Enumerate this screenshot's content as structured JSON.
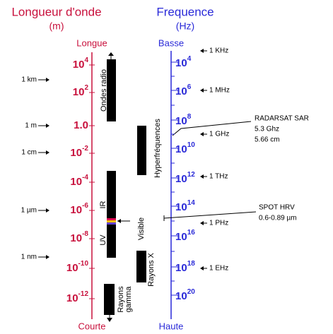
{
  "left_axis": {
    "title": "Longueur d'onde",
    "unit": "(m)",
    "top": "Longue",
    "bottom": "Courte",
    "ticks": [
      {
        "base": "10",
        "exp": "4"
      },
      {
        "base": "10",
        "exp": "2"
      },
      {
        "base": "1.0"
      },
      {
        "base": "10",
        "exp": "-2"
      },
      {
        "base": "10",
        "exp": "-4"
      },
      {
        "base": "10",
        "exp": "-6"
      },
      {
        "base": "10",
        "exp": "-8"
      },
      {
        "base": "10",
        "exp": "-10"
      },
      {
        "base": "10",
        "exp": "-12"
      }
    ],
    "markers": [
      "1 km",
      "1 m",
      "1 cm",
      "1 µm",
      "1 nm"
    ]
  },
  "right_axis": {
    "title": "Frequence",
    "unit": "(Hz)",
    "top": "Basse",
    "bottom": "Haute",
    "ticks": [
      {
        "base": "10",
        "exp": "4"
      },
      {
        "base": "10",
        "exp": "6"
      },
      {
        "base": "10",
        "exp": "8"
      },
      {
        "base": "10",
        "exp": "10"
      },
      {
        "base": "10",
        "exp": "12"
      },
      {
        "base": "10",
        "exp": "14"
      },
      {
        "base": "10",
        "exp": "16"
      },
      {
        "base": "10",
        "exp": "18"
      },
      {
        "base": "10",
        "exp": "20"
      }
    ],
    "markers": [
      "1 KHz",
      "1 MHz",
      "1 GHz",
      "1 THz",
      "1 PHz",
      "1 EHz"
    ]
  },
  "bands": [
    "Ondes radio",
    "Hyperfréquences",
    "IR",
    "Visible",
    "UV",
    "Rayons X",
    "Rayons",
    "gamma"
  ],
  "annotations": [
    {
      "lines": [
        "RADARSAT SAR",
        "5.3 Ghz",
        "5.66 cm"
      ]
    },
    {
      "lines": [
        "SPOT HRV",
        "0.6-0.89 µm"
      ]
    }
  ]
}
